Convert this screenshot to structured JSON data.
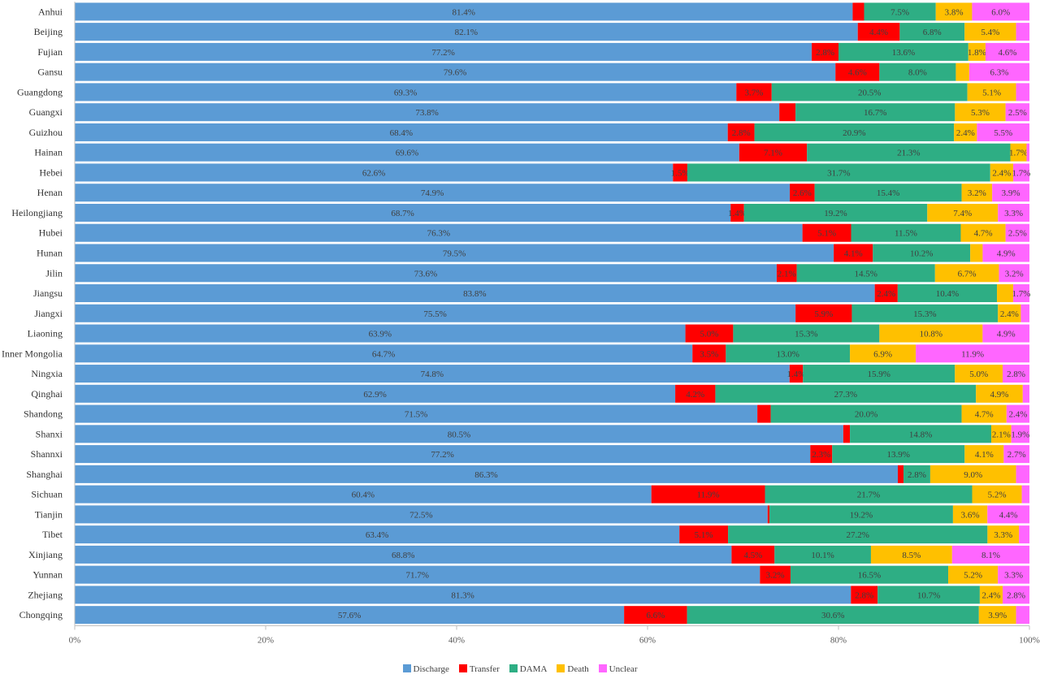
{
  "chart_data": {
    "type": "bar",
    "orientation": "horizontal",
    "stacked": "percent",
    "xlim": [
      0,
      100
    ],
    "x_ticks": [
      "0%",
      "20%",
      "40%",
      "60%",
      "80%",
      "100%"
    ],
    "legend_position": "bottom",
    "grid": false,
    "categories": [
      "Anhui",
      "Beijing",
      "Fujian",
      "Gansu",
      "Guangdong",
      "Guangxi",
      "Guizhou",
      "Hainan",
      "Hebei",
      "Henan",
      "Heilongjiang",
      "Hubei",
      "Hunan",
      "Jilin",
      "Jiangsu",
      "Jiangxi",
      "Liaoning",
      "Inner Mongolia",
      "Ningxia",
      "Qinghai",
      "Shandong",
      "Shanxi",
      "Shannxi",
      "Shanghai",
      "Sichuan",
      "Tianjin",
      "Tibet",
      "Xinjiang",
      "Yunnan",
      "Zhejiang",
      "Chongqing"
    ],
    "series": [
      {
        "name": "Discharge",
        "color": "#5B9BD5",
        "values": [
          81.4,
          82.1,
          77.2,
          79.6,
          69.3,
          73.8,
          68.4,
          69.6,
          62.6,
          74.9,
          68.7,
          76.3,
          79.5,
          73.6,
          83.8,
          75.5,
          63.9,
          64.7,
          74.8,
          62.9,
          71.5,
          80.5,
          77.2,
          86.3,
          60.4,
          72.5,
          63.4,
          68.8,
          71.7,
          81.3,
          57.6
        ],
        "labels": [
          "81.4%",
          "82.1%",
          "77.2%",
          "79.6%",
          "69.3%",
          "73.8%",
          "68.4%",
          "69.6%",
          "62.6%",
          "74.9%",
          "68.7%",
          "76.3%",
          "79.5%",
          "73.6%",
          "83.8%",
          "75.5%",
          "63.9%",
          "64.7%",
          "74.8%",
          "62.9%",
          "71.5%",
          "80.5%",
          "77.2%",
          "86.3%",
          "60.4%",
          "72.5%",
          "63.4%",
          "68.8%",
          "71.7%",
          "81.3%",
          "57.6%"
        ]
      },
      {
        "name": "Transfer",
        "color": "#FF0000",
        "values": [
          1.2,
          4.4,
          2.8,
          4.6,
          3.7,
          1.7,
          2.8,
          7.1,
          1.5,
          2.6,
          1.4,
          5.1,
          4.1,
          2.1,
          2.4,
          5.9,
          5.0,
          3.5,
          1.4,
          4.2,
          1.4,
          0.7,
          2.3,
          0.6,
          11.9,
          0.2,
          5.1,
          4.5,
          3.2,
          2.8,
          6.6
        ],
        "labels": [
          "",
          "4.4%",
          "2.8%",
          "4.6%",
          "3.7%",
          "",
          "2.8%",
          "7.1%",
          "1.5%",
          "2.6%",
          "1.4%",
          "5.1%",
          "4.1%",
          "2.1%",
          "2.4%",
          "5.9%",
          "5.0%",
          "3.5%",
          "1.4%",
          "4.2%",
          "",
          "",
          "2.3%",
          "",
          "11.9%",
          "",
          "5.1%",
          "4.5%",
          "3.2%",
          "2.8%",
          "6.6%"
        ]
      },
      {
        "name": "DAMA",
        "color": "#2EAE84",
        "values": [
          7.5,
          6.8,
          13.6,
          8.0,
          20.5,
          16.7,
          20.9,
          21.3,
          31.7,
          15.4,
          19.2,
          11.5,
          10.2,
          14.5,
          10.4,
          15.3,
          15.3,
          13.0,
          15.9,
          27.3,
          20.0,
          14.8,
          13.9,
          2.8,
          21.7,
          19.2,
          27.2,
          10.1,
          16.5,
          10.7,
          30.6
        ],
        "labels": [
          "7.5%",
          "6.8%",
          "13.6%",
          "8.0%",
          "20.5%",
          "16.7%",
          "20.9%",
          "21.3%",
          "31.7%",
          "15.4%",
          "19.2%",
          "11.5%",
          "10.2%",
          "14.5%",
          "10.4%",
          "15.3%",
          "15.3%",
          "13.0%",
          "15.9%",
          "27.3%",
          "20.0%",
          "14.8%",
          "13.9%",
          "2.8%",
          "21.7%",
          "19.2%",
          "27.2%",
          "10.1%",
          "16.5%",
          "10.7%",
          "30.6%"
        ]
      },
      {
        "name": "Death",
        "color": "#FFC000",
        "values": [
          3.8,
          5.4,
          1.8,
          1.4,
          5.1,
          5.3,
          2.4,
          1.7,
          2.4,
          3.2,
          7.4,
          4.7,
          1.3,
          6.7,
          1.7,
          2.4,
          10.8,
          6.9,
          5.0,
          4.9,
          4.7,
          2.1,
          4.1,
          9.0,
          5.2,
          3.6,
          3.3,
          8.5,
          5.2,
          2.4,
          3.9
        ],
        "labels": [
          "3.8%",
          "5.4%",
          "1.8%",
          "",
          "5.1%",
          "5.3%",
          "2.4%",
          "1.7%",
          "2.4%",
          "3.2%",
          "7.4%",
          "4.7%",
          "",
          "6.7%",
          "",
          "2.4%",
          "10.8%",
          "6.9%",
          "5.0%",
          "4.9%",
          "4.7%",
          "2.1%",
          "4.1%",
          "9.0%",
          "5.2%",
          "3.6%",
          "3.3%",
          "8.5%",
          "5.2%",
          "2.4%",
          "3.9%"
        ]
      },
      {
        "name": "Unclear",
        "color": "#FF66FF",
        "values": [
          6.0,
          1.4,
          4.6,
          6.3,
          1.4,
          2.5,
          5.5,
          0.3,
          1.7,
          3.9,
          3.3,
          2.5,
          4.9,
          3.2,
          1.7,
          0.9,
          4.9,
          11.9,
          2.8,
          0.7,
          2.4,
          1.9,
          2.7,
          1.4,
          0.8,
          4.4,
          1.1,
          8.1,
          3.3,
          2.8,
          1.4
        ],
        "labels": [
          "6.0%",
          "",
          "4.6%",
          "6.3%",
          "",
          "2.5%",
          "5.5%",
          "",
          "1.7%",
          "3.9%",
          "3.3%",
          "2.5%",
          "4.9%",
          "3.2%",
          "1.7%",
          "",
          "4.9%",
          "11.9%",
          "2.8%",
          "",
          "2.4%",
          "1.9%",
          "2.7%",
          "",
          "",
          "4.4%",
          "",
          "8.1%",
          "3.3%",
          "2.8%",
          ""
        ]
      }
    ]
  }
}
